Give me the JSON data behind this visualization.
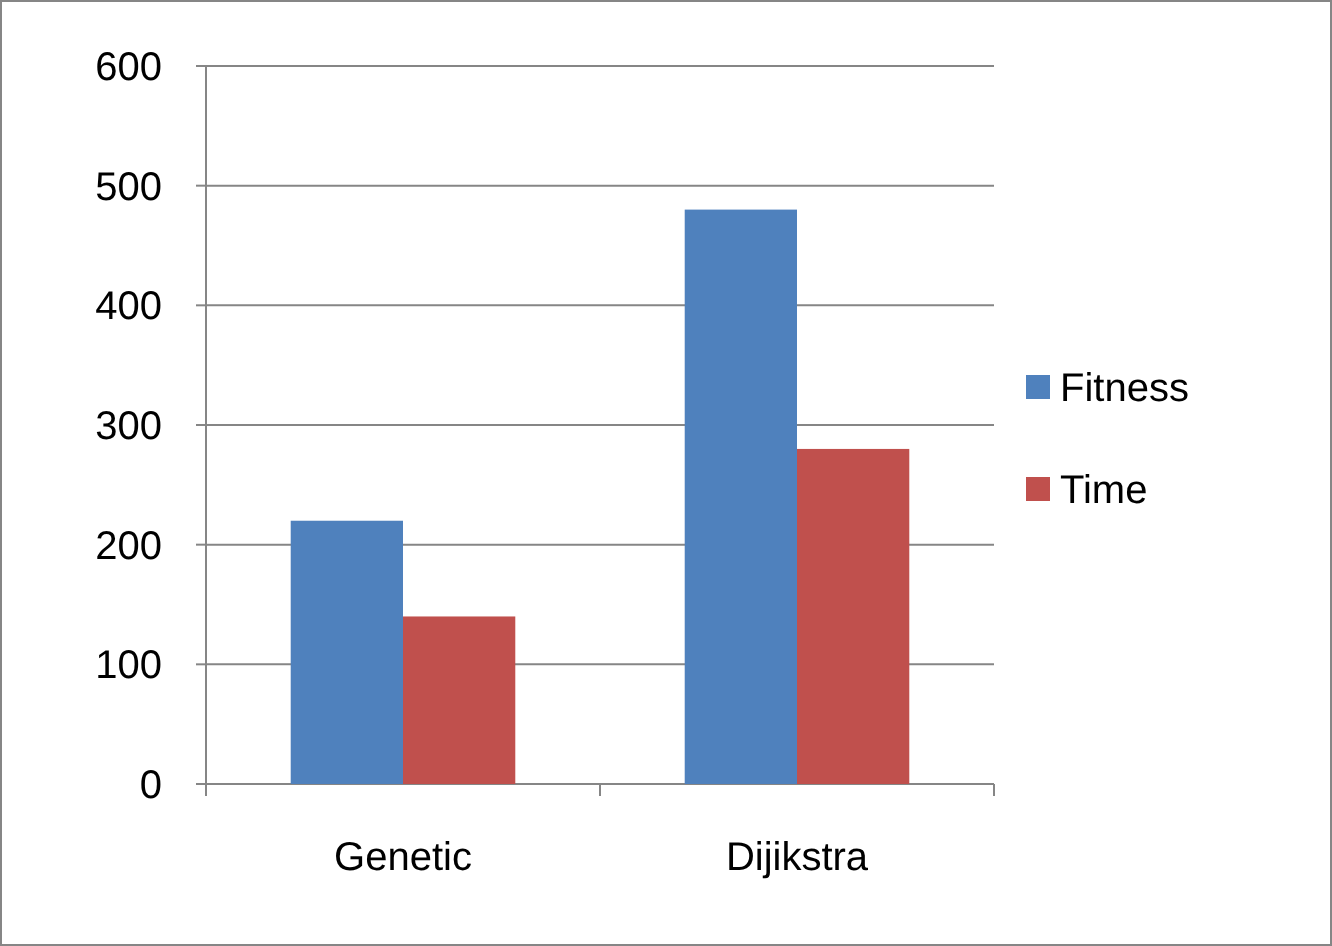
{
  "chart_data": {
    "type": "bar",
    "categories": [
      "Genetic",
      "Dijikstra"
    ],
    "series": [
      {
        "name": "Fitness",
        "color": "#4f81bd",
        "values": [
          220,
          480
        ]
      },
      {
        "name": "Time",
        "color": "#c0504d",
        "values": [
          140,
          280
        ]
      }
    ],
    "ylim": [
      0,
      600
    ],
    "yticks": [
      0,
      100,
      200,
      300,
      400,
      500,
      600
    ],
    "grid": "y",
    "legend": "right"
  }
}
